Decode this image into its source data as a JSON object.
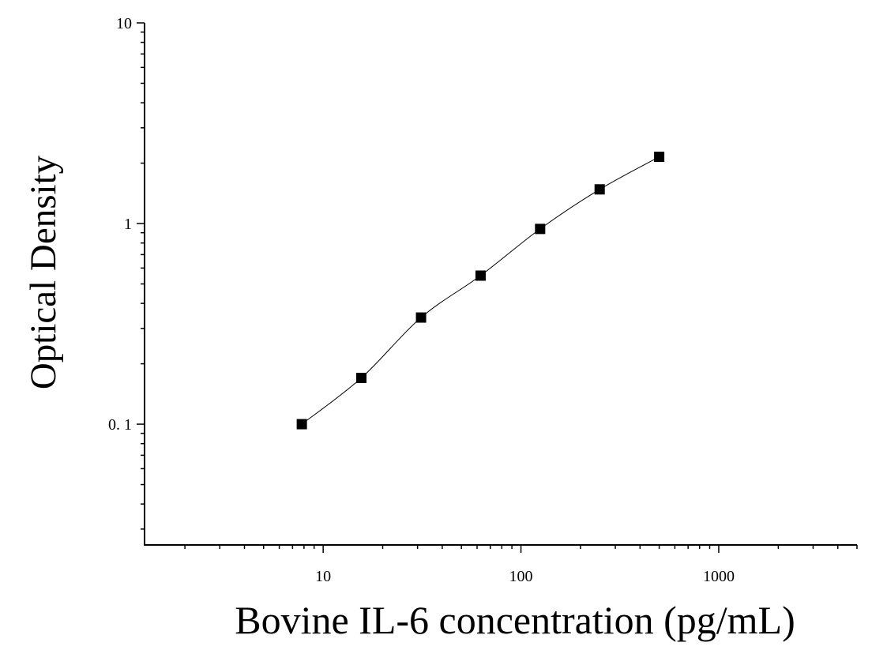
{
  "chart_data": {
    "type": "scatter",
    "title": "",
    "xlabel": "Bovine IL-6 concentration (pg/mL)",
    "ylabel": "Optical Density",
    "x_scale": "log",
    "y_scale": "log",
    "xlim": [
      1.25,
      5000
    ],
    "ylim": [
      0.025,
      10
    ],
    "x_tick_labels": [
      {
        "value": 10,
        "label": "10"
      },
      {
        "value": 100,
        "label": "100"
      },
      {
        "value": 1000,
        "label": "1000"
      }
    ],
    "y_tick_labels": [
      {
        "value": 0.1,
        "label": "0. 1"
      },
      {
        "value": 1,
        "label": "1"
      },
      {
        "value": 10,
        "label": "10"
      }
    ],
    "grid": false,
    "legend": "none",
    "marker": "square",
    "fit_curve": true,
    "colors": {
      "points": "#000000",
      "curve": "#000000",
      "axes": "#000000"
    },
    "points": [
      {
        "x": 7.8,
        "y": 0.1
      },
      {
        "x": 15.6,
        "y": 0.17
      },
      {
        "x": 31.25,
        "y": 0.34
      },
      {
        "x": 62.5,
        "y": 0.55
      },
      {
        "x": 125,
        "y": 0.94
      },
      {
        "x": 250,
        "y": 1.48
      },
      {
        "x": 500,
        "y": 2.15
      }
    ]
  }
}
